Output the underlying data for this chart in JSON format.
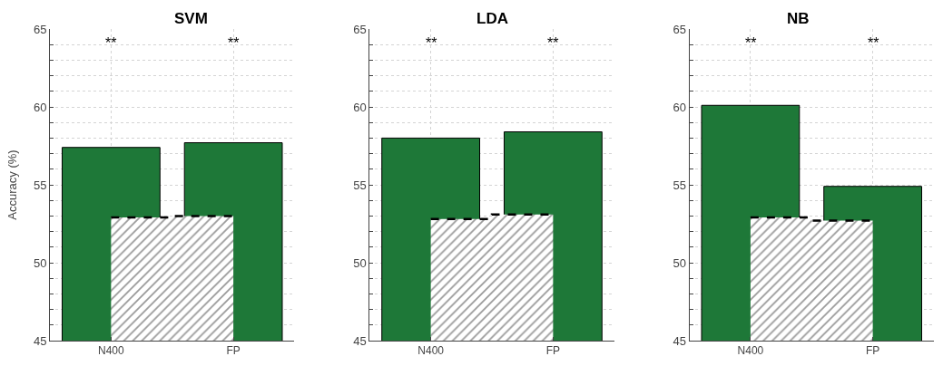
{
  "chart_data": [
    {
      "type": "bar",
      "title": "SVM",
      "ylabel": "Accuracy (%)",
      "categories": [
        "N400",
        "FP"
      ],
      "series": [
        {
          "color": "#1e7838",
          "values": [
            57.4,
            57.7
          ]
        },
        {
          "type": "area",
          "color": "#000000",
          "line_style": "dashed",
          "values": [
            52.9,
            53.0
          ]
        }
      ],
      "ylim": [
        45,
        65
      ],
      "yticks": [
        45,
        {
          "value": 46,
          "label": null
        },
        {
          "value": 47,
          "label": null
        },
        {
          "value": 48,
          "label": null
        },
        {
          "value": 49,
          "label": null
        },
        50,
        {
          "value": 51,
          "label": null
        },
        {
          "value": 52,
          "label": null
        },
        {
          "value": 53,
          "label": null
        },
        {
          "value": 54,
          "label": null
        },
        55,
        {
          "value": 56,
          "label": null
        },
        {
          "value": 57,
          "label": null
        },
        {
          "value": 58,
          "label": null
        },
        {
          "value": 59,
          "label": null
        },
        60,
        {
          "value": 61,
          "label": null
        },
        {
          "value": 62,
          "label": null
        },
        {
          "value": 63,
          "label": null
        },
        {
          "value": 64,
          "label": null
        },
        65
      ],
      "grid": true,
      "annotations": [
        "**",
        "**"
      ]
    },
    {
      "type": "bar",
      "title": "LDA",
      "categories": [
        "N400",
        "FP"
      ],
      "series": [
        {
          "color": "#1e7838",
          "values": [
            58.0,
            58.4
          ]
        },
        {
          "type": "area",
          "color": "#000000",
          "line_style": "dashed",
          "values": [
            52.8,
            53.1
          ]
        }
      ],
      "ylim": [
        45,
        65
      ],
      "yticks": [
        45,
        {
          "value": 46,
          "label": null
        },
        {
          "value": 47,
          "label": null
        },
        {
          "value": 48,
          "label": null
        },
        {
          "value": 49,
          "label": null
        },
        50,
        {
          "value": 51,
          "label": null
        },
        {
          "value": 52,
          "label": null
        },
        {
          "value": 53,
          "label": null
        },
        {
          "value": 54,
          "label": null
        },
        55,
        {
          "value": 56,
          "label": null
        },
        {
          "value": 57,
          "label": null
        },
        {
          "value": 58,
          "label": null
        },
        {
          "value": 59,
          "label": null
        },
        60,
        {
          "value": 61,
          "label": null
        },
        {
          "value": 62,
          "label": null
        },
        {
          "value": 63,
          "label": null
        },
        {
          "value": 64,
          "label": null
        },
        65
      ],
      "grid": true,
      "annotations": [
        "**",
        "**"
      ]
    },
    {
      "type": "bar",
      "title": "NB",
      "categories": [
        "N400",
        "FP"
      ],
      "series": [
        {
          "color": "#1e7838",
          "values": [
            60.1,
            54.9
          ]
        },
        {
          "type": "area",
          "color": "#000000",
          "line_style": "dashed",
          "values": [
            52.9,
            52.7
          ]
        }
      ],
      "ylim": [
        45,
        65
      ],
      "yticks": [
        45,
        {
          "value": 46,
          "label": null
        },
        {
          "value": 47,
          "label": null
        },
        {
          "value": 48,
          "label": null
        },
        {
          "value": 49,
          "label": null
        },
        50,
        {
          "value": 51,
          "label": null
        },
        {
          "value": 52,
          "label": null
        },
        {
          "value": 53,
          "label": null
        },
        {
          "value": 54,
          "label": null
        },
        55,
        {
          "value": 56,
          "label": null
        },
        {
          "value": 57,
          "label": null
        },
        {
          "value": 58,
          "label": null
        },
        {
          "value": 59,
          "label": null
        },
        60,
        {
          "value": 61,
          "label": null
        },
        {
          "value": 62,
          "label": null
        },
        {
          "value": 63,
          "label": null
        },
        {
          "value": 64,
          "label": null
        },
        65
      ],
      "grid": true,
      "annotations": [
        "**",
        "**"
      ]
    }
  ]
}
